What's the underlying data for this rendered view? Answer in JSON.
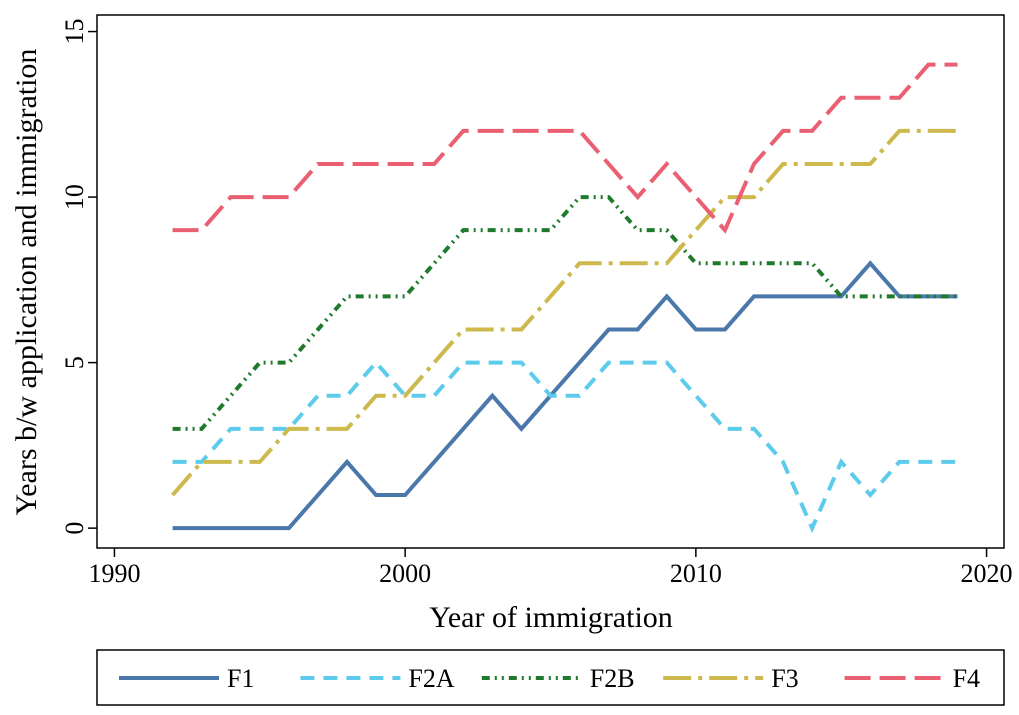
{
  "chart_data": {
    "type": "line",
    "xlabel": "Year of immigration",
    "ylabel": "Years b/w application and immigration",
    "x": [
      1992,
      1993,
      1994,
      1995,
      1996,
      1997,
      1998,
      1999,
      2000,
      2001,
      2002,
      2003,
      2004,
      2005,
      2006,
      2007,
      2008,
      2009,
      2010,
      2011,
      2012,
      2013,
      2014,
      2015,
      2016,
      2017,
      2018,
      2019
    ],
    "series": [
      {
        "name": "F1",
        "color": "#4a78ab",
        "values": [
          0,
          0,
          0,
          0,
          0,
          1,
          2,
          1,
          1,
          2,
          3,
          4,
          3,
          4,
          5,
          6,
          6,
          7,
          6,
          6,
          7,
          7,
          7,
          7,
          8,
          7,
          7,
          7
        ]
      },
      {
        "name": "F2A",
        "color": "#5dcbeb",
        "values": [
          2,
          2,
          3,
          3,
          3,
          4,
          4,
          5,
          4,
          4,
          5,
          5,
          5,
          4,
          4,
          5,
          5,
          5,
          4,
          3,
          3,
          2,
          0,
          2,
          1,
          2,
          2,
          2
        ]
      },
      {
        "name": "F2B",
        "color": "#1f7a2c",
        "values": [
          3,
          3,
          4,
          5,
          5,
          6,
          7,
          7,
          7,
          8,
          9,
          9,
          9,
          9,
          10,
          10,
          9,
          9,
          8,
          8,
          8,
          8,
          8,
          7,
          7,
          7,
          7,
          7
        ]
      },
      {
        "name": "F3",
        "color": "#cdb94e",
        "values": [
          1,
          2,
          2,
          2,
          3,
          3,
          3,
          4,
          4,
          5,
          6,
          6,
          6,
          7,
          8,
          8,
          8,
          8,
          9,
          10,
          10,
          11,
          11,
          11,
          11,
          12,
          12,
          12
        ]
      },
      {
        "name": "F4",
        "color": "#ea6072",
        "values": [
          9,
          9,
          10,
          10,
          10,
          11,
          11,
          11,
          11,
          11,
          12,
          12,
          12,
          12,
          12,
          11,
          10,
          11,
          10,
          9,
          11,
          12,
          12,
          13,
          13,
          13,
          14,
          14
        ]
      }
    ],
    "xlim": [
      1989.4,
      2020.6
    ],
    "xticks": [
      1990,
      2000,
      2010,
      2020
    ],
    "ylim": [
      -0.6,
      15.5
    ],
    "yticks": [
      0,
      5,
      10,
      15
    ],
    "grid": false
  }
}
